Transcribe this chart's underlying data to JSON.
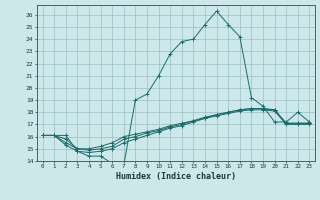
{
  "title": "",
  "xlabel": "Humidex (Indice chaleur)",
  "bg_color": "#cce8ea",
  "grid_color": "#9bbfc2",
  "line_color": "#1a6b6b",
  "xlim": [
    -0.5,
    23.5
  ],
  "ylim": [
    14,
    26.8
  ],
  "xticks": [
    0,
    1,
    2,
    3,
    4,
    5,
    6,
    7,
    8,
    9,
    10,
    11,
    12,
    13,
    14,
    15,
    16,
    17,
    18,
    19,
    20,
    21,
    22,
    23
  ],
  "yticks": [
    14,
    15,
    16,
    17,
    18,
    19,
    20,
    21,
    22,
    23,
    24,
    25,
    26
  ],
  "series1": [
    16.1,
    16.1,
    16.1,
    14.8,
    14.4,
    14.4,
    13.8,
    13.7,
    19.0,
    19.5,
    21.0,
    22.8,
    23.8,
    24.0,
    25.2,
    26.3,
    25.2,
    24.2,
    19.2,
    18.5,
    17.2,
    17.2,
    18.0,
    17.2
  ],
  "series2": [
    16.1,
    16.1,
    15.8,
    15.0,
    15.0,
    15.2,
    15.5,
    16.0,
    16.2,
    16.4,
    16.6,
    16.9,
    17.1,
    17.3,
    17.6,
    17.8,
    18.0,
    18.2,
    18.3,
    18.3,
    18.2,
    17.1,
    17.1,
    17.1
  ],
  "series3": [
    16.1,
    16.1,
    15.5,
    15.0,
    14.9,
    15.0,
    15.2,
    15.8,
    16.0,
    16.3,
    16.5,
    16.8,
    17.0,
    17.3,
    17.5,
    17.8,
    18.0,
    18.2,
    18.3,
    18.3,
    18.2,
    17.1,
    17.1,
    17.1
  ],
  "series4": [
    16.1,
    16.1,
    15.3,
    14.8,
    14.7,
    14.8,
    15.0,
    15.5,
    15.8,
    16.1,
    16.4,
    16.7,
    16.9,
    17.2,
    17.5,
    17.7,
    17.9,
    18.1,
    18.2,
    18.2,
    18.1,
    17.0,
    17.0,
    17.0
  ]
}
